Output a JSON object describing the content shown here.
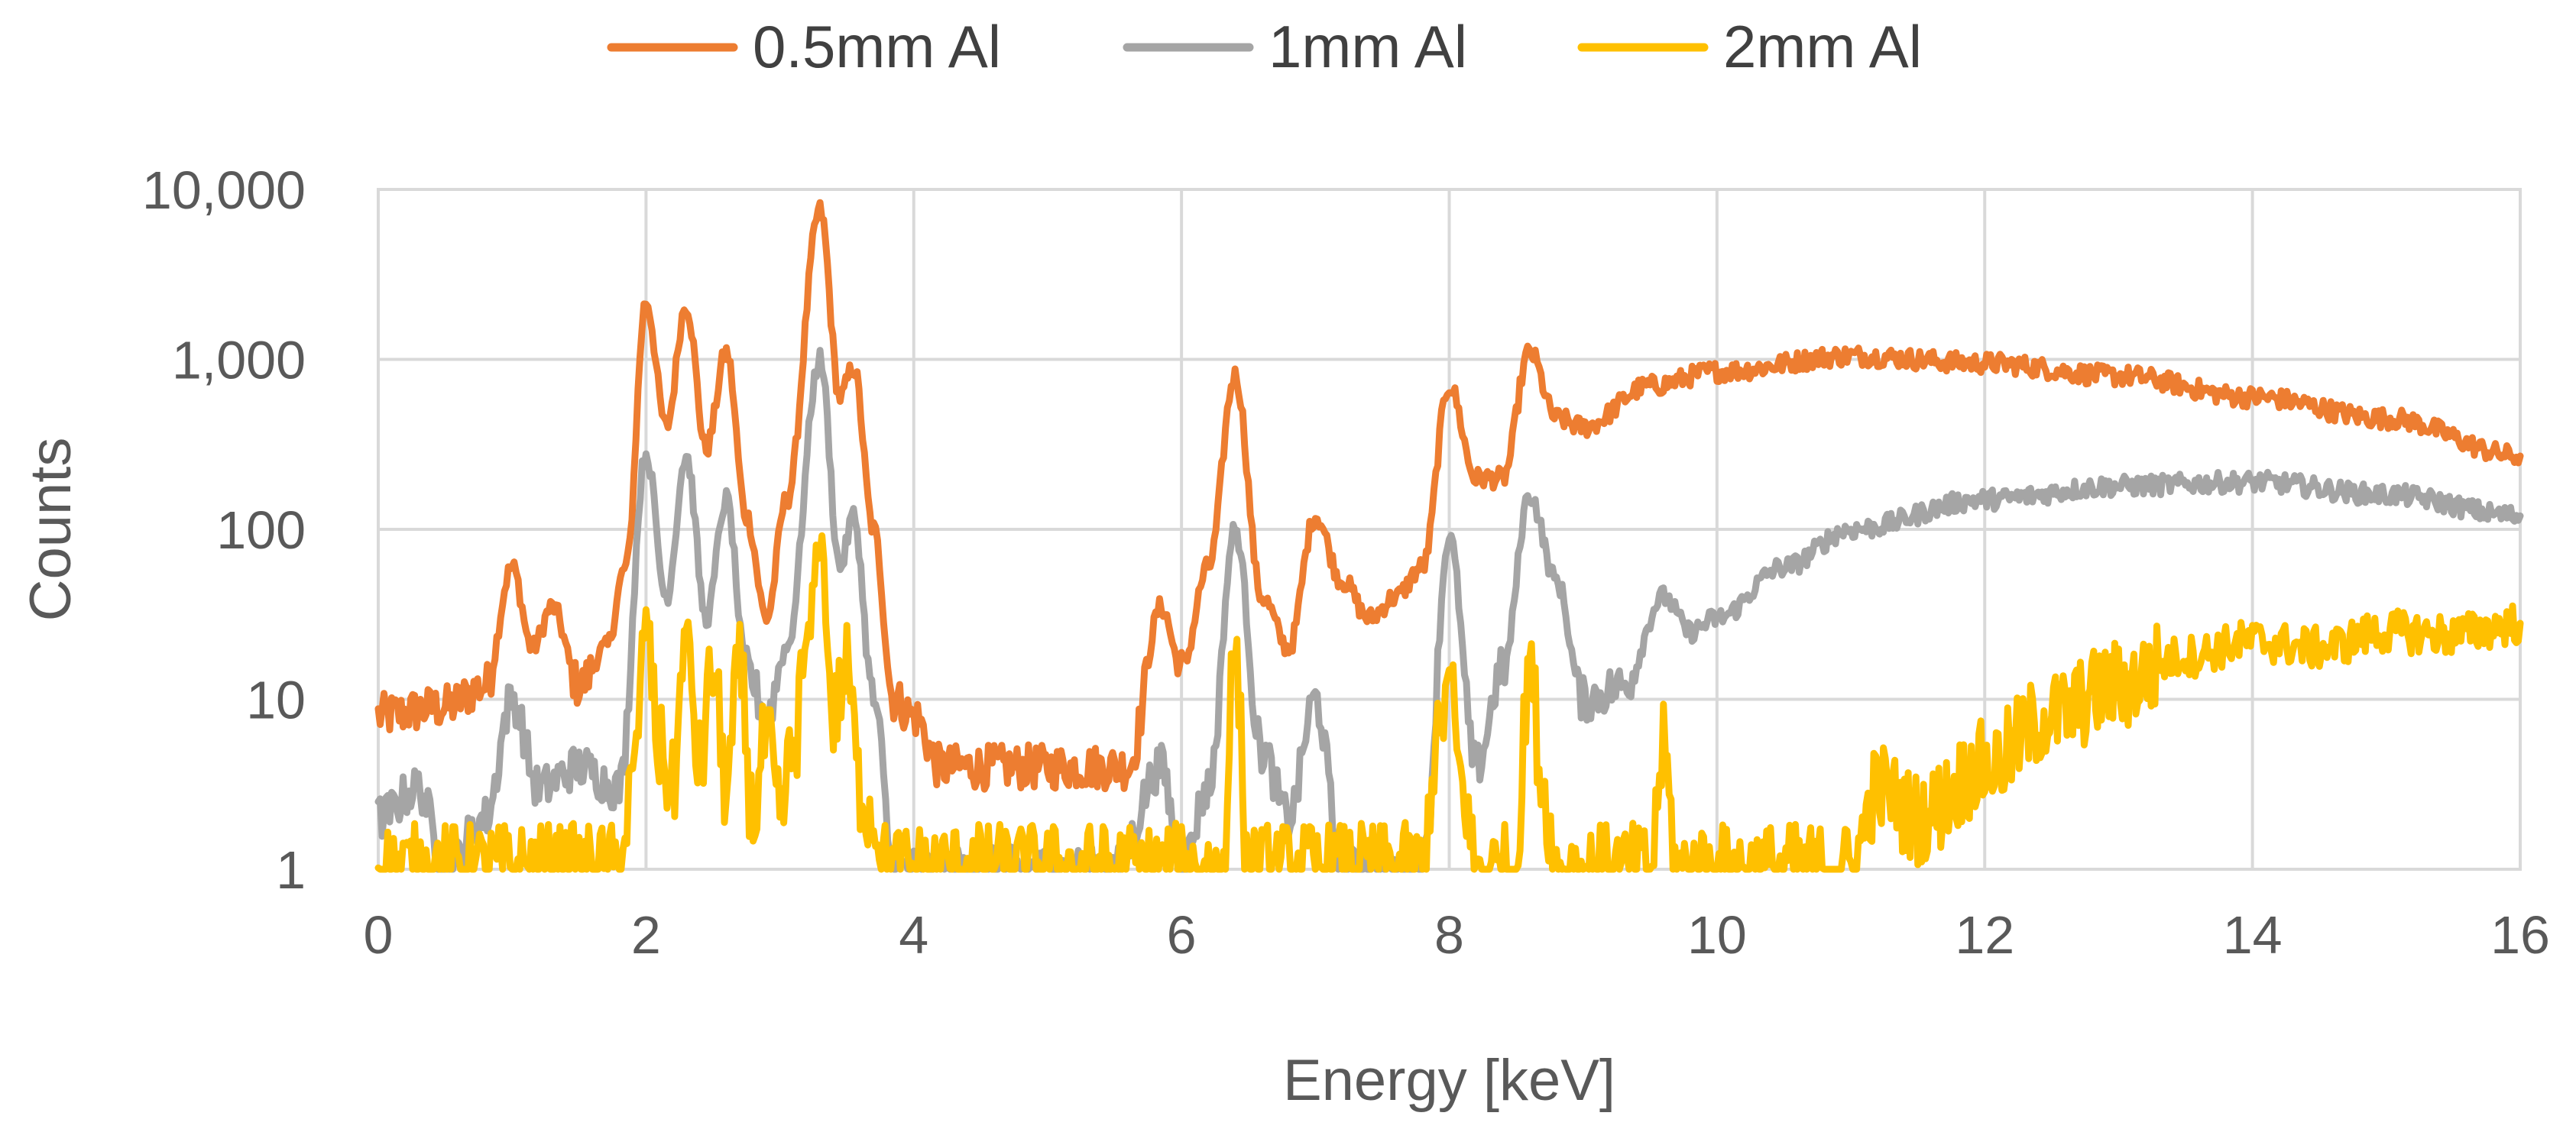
{
  "chart_data": {
    "type": "line",
    "title": "",
    "xlabel": "Energy [keV]",
    "ylabel": "Counts",
    "xlim": [
      0,
      16
    ],
    "ylim": [
      1,
      10000
    ],
    "yscale": "log",
    "grid": true,
    "legend_position": "top",
    "x_ticks": [
      0,
      2,
      4,
      6,
      8,
      10,
      12,
      14,
      16
    ],
    "x_tick_labels": [
      "0",
      "2",
      "4",
      "6",
      "8",
      "10",
      "12",
      "14",
      "16"
    ],
    "y_ticks": [
      1,
      10,
      100,
      1000,
      10000
    ],
    "y_tick_labels": [
      "1",
      "10",
      "100",
      "1,000",
      "10,000"
    ],
    "series": [
      {
        "name": "0.5mm Al",
        "color": "#ED7D31",
        "x": [
          0,
          0.5,
          0.8,
          1.0,
          1.15,
          1.3,
          1.5,
          1.7,
          1.85,
          2.0,
          2.15,
          2.3,
          2.45,
          2.6,
          2.75,
          2.9,
          3.05,
          3.3,
          3.45,
          3.55,
          3.7,
          3.85,
          4.0,
          4.2,
          5.0,
          5.6,
          5.85,
          6.0,
          6.2,
          6.4,
          6.6,
          6.8,
          7.0,
          7.2,
          7.4,
          7.6,
          7.8,
          8.0,
          8.2,
          8.4,
          8.6,
          8.8,
          9.0,
          9.5,
          10.0,
          11.0,
          12.0,
          13.0,
          14.0,
          15.0,
          16.0
        ],
        "y": [
          8,
          9,
          12,
          60,
          20,
          35,
          12,
          20,
          60,
          2200,
          400,
          2100,
          300,
          1100,
          120,
          30,
          150,
          7500,
          600,
          900,
          100,
          10,
          8,
          4,
          4,
          4,
          35,
          15,
          60,
          800,
          40,
          20,
          120,
          50,
          30,
          40,
          60,
          700,
          200,
          200,
          1100,
          450,
          400,
          700,
          850,
          1050,
          950,
          800,
          600,
          450,
          270
        ]
      },
      {
        "name": "1mm Al",
        "color": "#A5A5A5",
        "x": [
          0,
          0.3,
          0.5,
          0.8,
          1.0,
          1.2,
          1.5,
          1.8,
          2.0,
          2.15,
          2.3,
          2.45,
          2.6,
          2.75,
          2.9,
          3.05,
          3.3,
          3.45,
          3.55,
          3.7,
          3.85,
          4.0,
          5.5,
          5.85,
          6.0,
          6.2,
          6.4,
          6.6,
          6.8,
          7.0,
          7.2,
          7.8,
          8.0,
          8.2,
          8.4,
          8.6,
          8.8,
          9.0,
          9.3,
          9.6,
          9.8,
          10.0,
          10.5,
          11.0,
          12.0,
          13.0,
          14.0,
          15.0,
          16.0
        ],
        "y": [
          2,
          3,
          1,
          2,
          10,
          3,
          4,
          3,
          280,
          40,
          270,
          30,
          150,
          15,
          8,
          20,
          1000,
          60,
          120,
          10,
          1,
          1,
          1,
          4,
          1,
          3,
          100,
          5,
          2,
          10,
          1,
          1,
          90,
          4,
          15,
          160,
          50,
          10,
          12,
          40,
          25,
          30,
          60,
          100,
          150,
          180,
          190,
          160,
          120
        ]
      },
      {
        "name": "2mm Al",
        "color": "#FFC000",
        "x": [
          0,
          1.8,
          1.9,
          2.0,
          2.1,
          2.2,
          2.3,
          2.4,
          2.5,
          2.6,
          2.7,
          2.8,
          2.9,
          3.0,
          3.1,
          3.2,
          3.3,
          3.4,
          3.5,
          3.6,
          3.7,
          3.8,
          4.0,
          6.3,
          6.4,
          6.5,
          7.8,
          7.9,
          8.0,
          8.1,
          8.2,
          8.5,
          8.6,
          8.7,
          8.8,
          9.5,
          9.6,
          9.7,
          10.5,
          11.0,
          11.2,
          11.5,
          12.0,
          12.5,
          13.0,
          13.5,
          14.0,
          14.5,
          15.0,
          15.5,
          16.0
        ],
        "y": [
          1,
          1,
          3,
          30,
          5,
          3,
          25,
          4,
          15,
          3,
          15,
          2,
          6,
          2,
          5,
          20,
          90,
          8,
          15,
          3,
          2,
          1,
          1,
          1,
          20,
          1,
          1,
          5,
          12,
          3,
          1,
          1,
          18,
          3,
          1,
          1,
          5,
          1,
          1,
          1,
          3,
          2,
          4,
          8,
          12,
          18,
          22,
          20,
          25,
          24,
          28
        ]
      }
    ]
  }
}
